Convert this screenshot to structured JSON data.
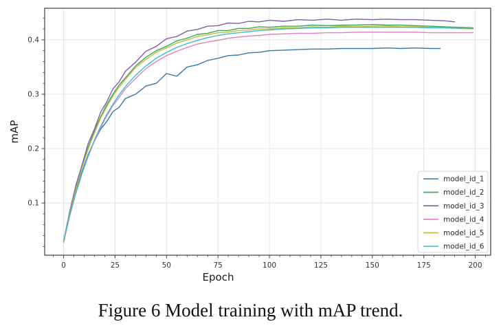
{
  "figure": {
    "caption": "Figure 6 Model training with mAP trend."
  },
  "chart_data": {
    "type": "line",
    "title": "",
    "xlabel": "Epoch",
    "ylabel": "mAP",
    "xlim": [
      -9.2,
      207.5
    ],
    "ylim": [
      0.004,
      0.458
    ],
    "xticks": [
      0,
      25,
      50,
      75,
      100,
      125,
      150,
      175,
      200
    ],
    "yticks": [
      0.1,
      0.2,
      0.3,
      0.4
    ],
    "x_minor_step": 5,
    "y_minor_step": 0.02,
    "grid": true,
    "grid_color": "#e4e4e4",
    "spine_color": "#3f3f3f",
    "tick_label_color": "#333333",
    "axis_label_color": "#1a1a1a",
    "legend_position": "lower right",
    "series": [
      {
        "name": "model_id_1",
        "color": "#3578a9",
        "x": [
          0,
          3,
          6,
          9,
          12,
          15,
          18,
          21,
          24,
          27,
          30,
          35,
          40,
          45,
          50,
          55,
          60,
          65,
          70,
          75,
          80,
          85,
          90,
          95,
          100,
          107,
          114,
          121,
          128,
          135,
          142,
          150,
          157,
          164,
          171,
          178,
          183
        ],
        "y": [
          0.03,
          0.08,
          0.122,
          0.158,
          0.19,
          0.214,
          0.236,
          0.25,
          0.268,
          0.276,
          0.292,
          0.3,
          0.315,
          0.32,
          0.338,
          0.333,
          0.35,
          0.354,
          0.362,
          0.366,
          0.371,
          0.372,
          0.376,
          0.377,
          0.38,
          0.381,
          0.382,
          0.383,
          0.383,
          0.384,
          0.384,
          0.384,
          0.385,
          0.384,
          0.385,
          0.384,
          0.384
        ]
      },
      {
        "name": "model_id_2",
        "color": "#3fa35a",
        "x": [
          0,
          3,
          6,
          9,
          12,
          15,
          18,
          21,
          24,
          27,
          30,
          35,
          40,
          45,
          50,
          55,
          60,
          65,
          70,
          75,
          80,
          85,
          90,
          95,
          100,
          107,
          114,
          121,
          128,
          135,
          142,
          150,
          157,
          164,
          171,
          178,
          185,
          192,
          199
        ],
        "y": [
          0.028,
          0.083,
          0.129,
          0.168,
          0.203,
          0.233,
          0.259,
          0.281,
          0.3,
          0.317,
          0.33,
          0.352,
          0.368,
          0.38,
          0.388,
          0.398,
          0.403,
          0.41,
          0.412,
          0.417,
          0.417,
          0.421,
          0.421,
          0.424,
          0.423,
          0.425,
          0.425,
          0.427,
          0.426,
          0.427,
          0.427,
          0.428,
          0.427,
          0.427,
          0.426,
          0.425,
          0.424,
          0.423,
          0.422
        ]
      },
      {
        "name": "model_id_3",
        "color": "#7e5cae",
        "x": [
          0,
          3,
          6,
          9,
          12,
          15,
          18,
          21,
          24,
          27,
          30,
          35,
          40,
          45,
          50,
          55,
          60,
          65,
          70,
          75,
          80,
          85,
          90,
          95,
          100,
          107,
          114,
          121,
          128,
          135,
          142,
          150,
          157,
          164,
          171,
          178,
          185,
          190
        ],
        "y": [
          0.03,
          0.085,
          0.133,
          0.17,
          0.21,
          0.236,
          0.267,
          0.286,
          0.31,
          0.323,
          0.342,
          0.359,
          0.379,
          0.388,
          0.402,
          0.406,
          0.416,
          0.419,
          0.425,
          0.426,
          0.431,
          0.43,
          0.434,
          0.433,
          0.436,
          0.434,
          0.437,
          0.436,
          0.438,
          0.436,
          0.438,
          0.437,
          0.438,
          0.437,
          0.437,
          0.436,
          0.435,
          0.433
        ]
      },
      {
        "name": "model_id_4",
        "color": "#e17fc2",
        "x": [
          0,
          3,
          6,
          9,
          12,
          15,
          18,
          21,
          24,
          27,
          30,
          35,
          40,
          45,
          50,
          55,
          60,
          65,
          70,
          75,
          80,
          85,
          90,
          95,
          100,
          107,
          114,
          121,
          128,
          135,
          142,
          150,
          157,
          164,
          171,
          178,
          185,
          192,
          199
        ],
        "y": [
          0.027,
          0.077,
          0.118,
          0.155,
          0.186,
          0.214,
          0.239,
          0.26,
          0.279,
          0.294,
          0.31,
          0.329,
          0.347,
          0.36,
          0.371,
          0.379,
          0.386,
          0.392,
          0.396,
          0.399,
          0.403,
          0.405,
          0.407,
          0.408,
          0.41,
          0.411,
          0.412,
          0.412,
          0.413,
          0.413,
          0.414,
          0.414,
          0.414,
          0.414,
          0.414,
          0.413,
          0.413,
          0.413,
          0.413
        ]
      },
      {
        "name": "model_id_5",
        "color": "#c4ba3b",
        "x": [
          0,
          3,
          6,
          9,
          12,
          15,
          18,
          21,
          24,
          27,
          30,
          35,
          40,
          45,
          50,
          55,
          60,
          65,
          70,
          75,
          80,
          85,
          90,
          95,
          100,
          107,
          114,
          121,
          128,
          135,
          142,
          150,
          157,
          164,
          171,
          178,
          185,
          192,
          199
        ],
        "y": [
          0.029,
          0.08,
          0.126,
          0.165,
          0.2,
          0.229,
          0.256,
          0.277,
          0.297,
          0.313,
          0.327,
          0.349,
          0.364,
          0.377,
          0.385,
          0.394,
          0.4,
          0.406,
          0.409,
          0.413,
          0.414,
          0.417,
          0.418,
          0.42,
          0.42,
          0.422,
          0.422,
          0.424,
          0.423,
          0.425,
          0.424,
          0.425,
          0.425,
          0.424,
          0.424,
          0.423,
          0.422,
          0.421,
          0.42
        ]
      },
      {
        "name": "model_id_6",
        "color": "#3fbcca",
        "x": [
          0,
          3,
          6,
          9,
          12,
          15,
          18,
          21,
          24,
          27,
          30,
          35,
          40,
          45,
          50,
          55,
          60,
          65,
          70,
          75,
          80,
          85,
          90,
          95,
          100,
          107,
          114,
          121,
          128,
          135,
          142,
          150,
          157,
          164,
          171,
          178,
          185,
          192,
          199
        ],
        "y": [
          0.031,
          0.077,
          0.119,
          0.155,
          0.188,
          0.216,
          0.241,
          0.263,
          0.282,
          0.299,
          0.314,
          0.335,
          0.352,
          0.366,
          0.377,
          0.386,
          0.393,
          0.399,
          0.404,
          0.408,
          0.411,
          0.413,
          0.415,
          0.417,
          0.418,
          0.42,
          0.421,
          0.422,
          0.422,
          0.423,
          0.423,
          0.423,
          0.423,
          0.423,
          0.423,
          0.422,
          0.422,
          0.421,
          0.421
        ]
      }
    ]
  }
}
